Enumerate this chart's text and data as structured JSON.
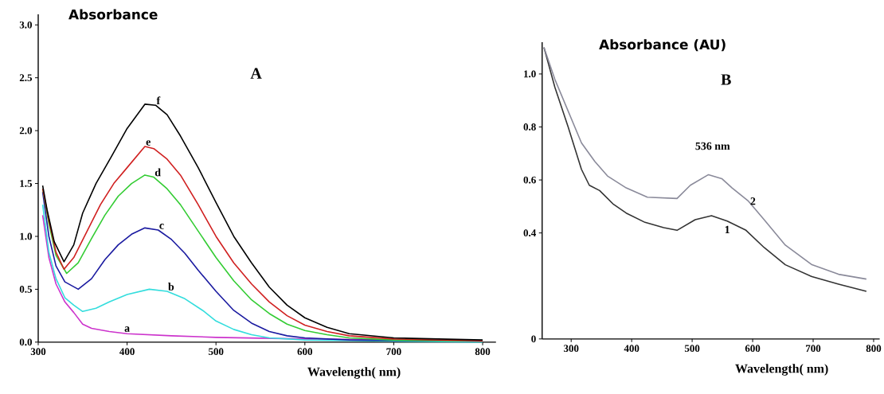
{
  "chart_data": [
    {
      "type": "line",
      "title": "A",
      "xlabel": "Wavelength( nm)",
      "ylabel": "Absorbance",
      "xlim": [
        300,
        815
      ],
      "ylim": [
        0,
        3.1
      ],
      "xticks": [
        300,
        400,
        500,
        600,
        700,
        800
      ],
      "yticks": [
        {
          "value": 0,
          "label": "0.0"
        },
        {
          "value": 0.5,
          "label": "0.5"
        },
        {
          "value": 1,
          "label": "1.0"
        },
        {
          "value": 1.5,
          "label": "1.5"
        },
        {
          "value": 2,
          "label": "2.0"
        },
        {
          "value": 2.5,
          "label": "2.5"
        },
        {
          "value": 3,
          "label": "3.0"
        }
      ],
      "series": [
        {
          "name": "a",
          "color": "#cc33cc",
          "x": [
            305,
            312,
            320,
            330,
            340,
            350,
            360,
            380,
            400,
            450,
            500,
            600,
            700,
            800
          ],
          "values": [
            1.2,
            0.8,
            0.55,
            0.38,
            0.28,
            0.17,
            0.13,
            0.1,
            0.08,
            0.06,
            0.045,
            0.03,
            0.02,
            0.01
          ]
        },
        {
          "name": "b",
          "color": "#33dddd",
          "x": [
            305,
            312,
            320,
            330,
            340,
            350,
            365,
            380,
            400,
            425,
            445,
            465,
            485,
            500,
            520,
            540,
            560,
            600,
            700,
            800
          ],
          "values": [
            1.3,
            0.85,
            0.6,
            0.42,
            0.35,
            0.29,
            0.32,
            0.38,
            0.45,
            0.5,
            0.48,
            0.41,
            0.3,
            0.2,
            0.12,
            0.07,
            0.04,
            0.02,
            0.01,
            0.0
          ]
        },
        {
          "name": "c",
          "color": "#1a1aa0",
          "x": [
            305,
            312,
            320,
            330,
            345,
            360,
            375,
            390,
            405,
            420,
            435,
            450,
            465,
            480,
            500,
            520,
            540,
            560,
            580,
            600,
            650,
            800
          ],
          "values": [
            1.42,
            1.0,
            0.72,
            0.57,
            0.5,
            0.6,
            0.78,
            0.92,
            1.02,
            1.08,
            1.06,
            0.97,
            0.84,
            0.68,
            0.48,
            0.3,
            0.18,
            0.1,
            0.06,
            0.04,
            0.02,
            0.01
          ]
        },
        {
          "name": "d",
          "color": "#33cc33",
          "x": [
            305,
            312,
            320,
            332,
            345,
            360,
            375,
            390,
            405,
            420,
            430,
            445,
            460,
            480,
            500,
            520,
            540,
            560,
            580,
            600,
            625,
            650,
            700,
            800
          ],
          "values": [
            1.45,
            1.12,
            0.82,
            0.65,
            0.75,
            0.98,
            1.2,
            1.38,
            1.5,
            1.58,
            1.56,
            1.45,
            1.3,
            1.05,
            0.8,
            0.58,
            0.4,
            0.27,
            0.17,
            0.11,
            0.07,
            0.04,
            0.02,
            0.01
          ]
        },
        {
          "name": "e",
          "color": "#d02020",
          "x": [
            305,
            312,
            320,
            329,
            340,
            355,
            370,
            385,
            400,
            420,
            430,
            445,
            460,
            480,
            500,
            520,
            540,
            560,
            580,
            600,
            625,
            650,
            700,
            800
          ],
          "values": [
            1.45,
            1.15,
            0.85,
            0.69,
            0.8,
            1.05,
            1.3,
            1.5,
            1.65,
            1.85,
            1.83,
            1.73,
            1.58,
            1.3,
            1.0,
            0.75,
            0.55,
            0.38,
            0.25,
            0.16,
            0.1,
            0.06,
            0.03,
            0.01
          ]
        },
        {
          "name": "f",
          "color": "#000000",
          "x": [
            305,
            310,
            318,
            329,
            340,
            350,
            365,
            382,
            400,
            420,
            432,
            445,
            460,
            480,
            500,
            520,
            540,
            560,
            580,
            600,
            625,
            650,
            700,
            750,
            800
          ],
          "values": [
            1.48,
            1.25,
            0.95,
            0.76,
            0.92,
            1.22,
            1.5,
            1.75,
            2.02,
            2.25,
            2.24,
            2.15,
            1.95,
            1.65,
            1.32,
            1.0,
            0.75,
            0.52,
            0.35,
            0.23,
            0.14,
            0.08,
            0.04,
            0.03,
            0.02
          ]
        }
      ]
    },
    {
      "type": "line",
      "title": "B",
      "xlabel": "Wavelength( nm)",
      "ylabel": "Absorbance  (AU)",
      "xlim": [
        252,
        810
      ],
      "ylim": [
        0,
        1.12
      ],
      "xticks": [
        300,
        400,
        500,
        600,
        700,
        800
      ],
      "yticks": [
        0,
        0.4,
        0.6,
        0.8,
        {
          "value": 1,
          "label": "1.0"
        }
      ],
      "series": [
        {
          "name": "1",
          "color": "#333333",
          "x": [
            255,
            273,
            295,
            317,
            330,
            347,
            369,
            391,
            422,
            453,
            475,
            505,
            532,
            558,
            589,
            619,
            654,
            698,
            742,
            788
          ],
          "values": [
            1.1,
            0.95,
            0.8,
            0.64,
            0.58,
            0.56,
            0.51,
            0.475,
            0.44,
            0.42,
            0.41,
            0.45,
            0.465,
            0.445,
            0.41,
            0.345,
            0.28,
            0.235,
            0.207,
            0.18
          ]
        },
        {
          "name": "2",
          "color": "#8a8a9a",
          "x": [
            255,
            273,
            295,
            317,
            339,
            360,
            391,
            426,
            475,
            497,
            527,
            549,
            566,
            593,
            619,
            654,
            698,
            742,
            788
          ],
          "values": [
            1.1,
            0.98,
            0.86,
            0.74,
            0.67,
            0.615,
            0.57,
            0.535,
            0.53,
            0.58,
            0.62,
            0.605,
            0.57,
            0.52,
            0.45,
            0.354,
            0.28,
            0.244,
            0.226
          ]
        }
      ],
      "annotations": [
        "536 nm"
      ]
    }
  ]
}
